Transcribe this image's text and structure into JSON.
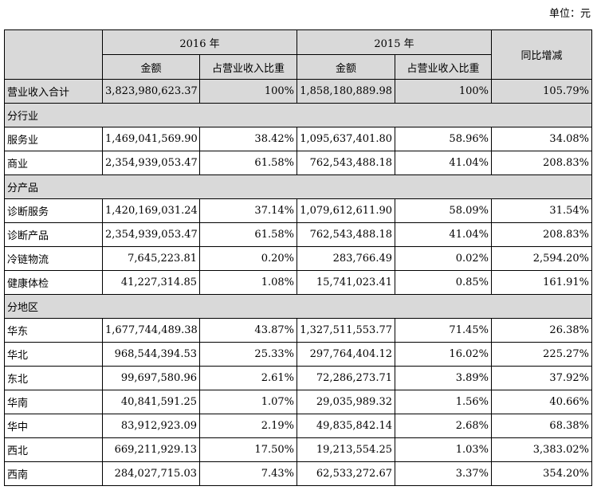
{
  "unit_label": "单位：元",
  "header": {
    "year1": "2016 年",
    "year2": "2015 年",
    "change": "同比增减",
    "amount": "金额",
    "ratio": "占营业收入比重"
  },
  "total": {
    "name": "营业收入合计",
    "v1": "3,823,980,623.37",
    "r1": "100%",
    "v2": "1,858,180,889.98",
    "r2": "100%",
    "chg": "105.79%"
  },
  "sections": [
    {
      "title": "分行业",
      "rows": [
        {
          "name": "服务业",
          "v1": "1,469,041,569.90",
          "r1": "38.42%",
          "v2": "1,095,637,401.80",
          "r2": "58.96%",
          "chg": "34.08%"
        },
        {
          "name": "商业",
          "v1": "2,354,939,053.47",
          "r1": "61.58%",
          "v2": "762,543,488.18",
          "r2": "41.04%",
          "chg": "208.83%"
        }
      ]
    },
    {
      "title": "分产品",
      "rows": [
        {
          "name": "诊断服务",
          "v1": "1,420,169,031.24",
          "r1": "37.14%",
          "v2": "1,079,612,611.90",
          "r2": "58.09%",
          "chg": "31.54%"
        },
        {
          "name": "诊断产品",
          "v1": "2,354,939,053.47",
          "r1": "61.58%",
          "v2": "762,543,488.18",
          "r2": "41.04%",
          "chg": "208.83%"
        },
        {
          "name": "冷链物流",
          "v1": "7,645,223.81",
          "r1": "0.20%",
          "v2": "283,766.49",
          "r2": "0.02%",
          "chg": "2,594.20%"
        },
        {
          "name": "健康体检",
          "v1": "41,227,314.85",
          "r1": "1.08%",
          "v2": "15,741,023.41",
          "r2": "0.85%",
          "chg": "161.91%"
        }
      ]
    },
    {
      "title": "分地区",
      "rows": [
        {
          "name": "华东",
          "v1": "1,677,744,489.38",
          "r1": "43.87%",
          "v2": "1,327,511,553.77",
          "r2": "71.45%",
          "chg": "26.38%"
        },
        {
          "name": "华北",
          "v1": "968,544,394.53",
          "r1": "25.33%",
          "v2": "297,764,404.12",
          "r2": "16.02%",
          "chg": "225.27%"
        },
        {
          "name": "东北",
          "v1": "99,697,580.96",
          "r1": "2.61%",
          "v2": "72,286,273.71",
          "r2": "3.89%",
          "chg": "37.92%"
        },
        {
          "name": "华南",
          "v1": "40,841,591.25",
          "r1": "1.07%",
          "v2": "29,035,989.32",
          "r2": "1.56%",
          "chg": "40.66%"
        },
        {
          "name": "华中",
          "v1": "83,912,923.09",
          "r1": "2.19%",
          "v2": "49,835,842.14",
          "r2": "2.68%",
          "chg": "68.38%"
        },
        {
          "name": "西北",
          "v1": "669,211,929.13",
          "r1": "17.50%",
          "v2": "19,213,554.25",
          "r2": "1.03%",
          "chg": "3,383.02%"
        },
        {
          "name": "西南",
          "v1": "284,027,715.03",
          "r1": "7.43%",
          "v2": "62,533,272.67",
          "r2": "3.37%",
          "chg": "354.20%"
        }
      ]
    }
  ]
}
